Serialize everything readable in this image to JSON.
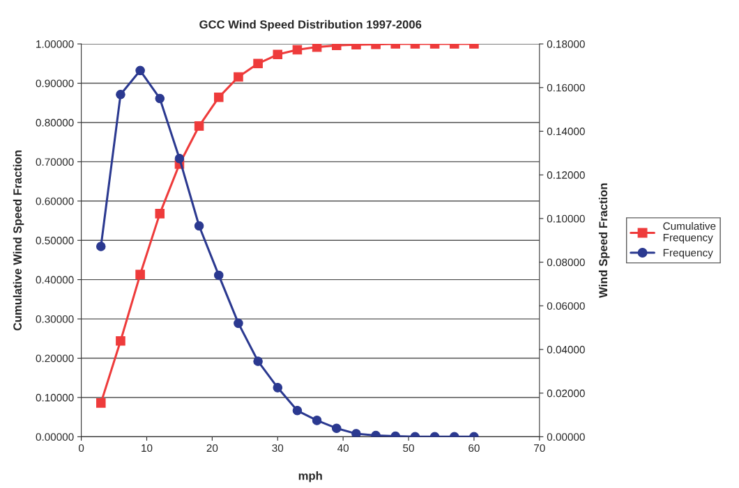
{
  "chart_data": {
    "type": "line",
    "title": "GCC Wind Speed Distribution 1997-2006",
    "xlabel": "mph",
    "ylabel": "Cumulative Wind Speed Fraction",
    "y2label": "Wind Speed Fraction",
    "x": [
      3,
      6,
      9,
      12,
      15,
      18,
      21,
      24,
      27,
      30,
      33,
      36,
      39,
      42,
      45,
      48,
      51,
      54,
      57,
      60
    ],
    "series": [
      {
        "name": "Cumulative\nFrequency",
        "color": "#ee3b3b",
        "marker": "square",
        "values": [
          0.086,
          0.244,
          0.413,
          0.568,
          0.694,
          0.791,
          0.864,
          0.916,
          0.95,
          0.973,
          0.985,
          0.992,
          0.996,
          0.998,
          0.999,
          1.0,
          1.0,
          1.0,
          1.0,
          1.0
        ]
      },
      {
        "name": "Frequency",
        "color": "#2b3990",
        "marker": "circle",
        "axis": "y2",
        "values": [
          0.0872,
          0.1568,
          0.1678,
          0.155,
          0.1275,
          0.0966,
          0.074,
          0.052,
          0.0346,
          0.0225,
          0.012,
          0.0075,
          0.0039,
          0.0014,
          0.0006,
          0.0003,
          0.0,
          0.0,
          0.0,
          0.0
        ]
      }
    ],
    "xlim": [
      0,
      70
    ],
    "xticks": [
      0,
      10,
      20,
      30,
      40,
      50,
      60,
      70
    ],
    "ylim": [
      0,
      1
    ],
    "yticks": [
      {
        "value": 0,
        "label": "0.00000"
      },
      {
        "value": 0.1,
        "label": "0.10000"
      },
      {
        "value": 0.2,
        "label": "0.20000"
      },
      {
        "value": 0.3,
        "label": "0.30000"
      },
      {
        "value": 0.4,
        "label": "0.40000"
      },
      {
        "value": 0.5,
        "label": "0.50000"
      },
      {
        "value": 0.6,
        "label": "0.60000"
      },
      {
        "value": 0.7,
        "label": "0.70000"
      },
      {
        "value": 0.8,
        "label": "0.80000"
      },
      {
        "value": 0.9,
        "label": "0.90000"
      },
      {
        "value": 1,
        "label": "1.00000"
      }
    ],
    "y2lim": [
      0,
      0.18
    ],
    "y2ticks": [
      {
        "value": 0,
        "label": "0.00000"
      },
      {
        "value": 0.02,
        "label": "0.02000"
      },
      {
        "value": 0.04,
        "label": "0.04000"
      },
      {
        "value": 0.06,
        "label": "0.06000"
      },
      {
        "value": 0.08,
        "label": "0.08000"
      },
      {
        "value": 0.1,
        "label": "0.10000"
      },
      {
        "value": 0.12,
        "label": "0.12000"
      },
      {
        "value": 0.14,
        "label": "0.14000"
      },
      {
        "value": 0.16,
        "label": "0.16000"
      },
      {
        "value": 0.18,
        "label": "0.18000"
      }
    ],
    "grid": "y",
    "legend": "right",
    "line_style": "solid"
  }
}
